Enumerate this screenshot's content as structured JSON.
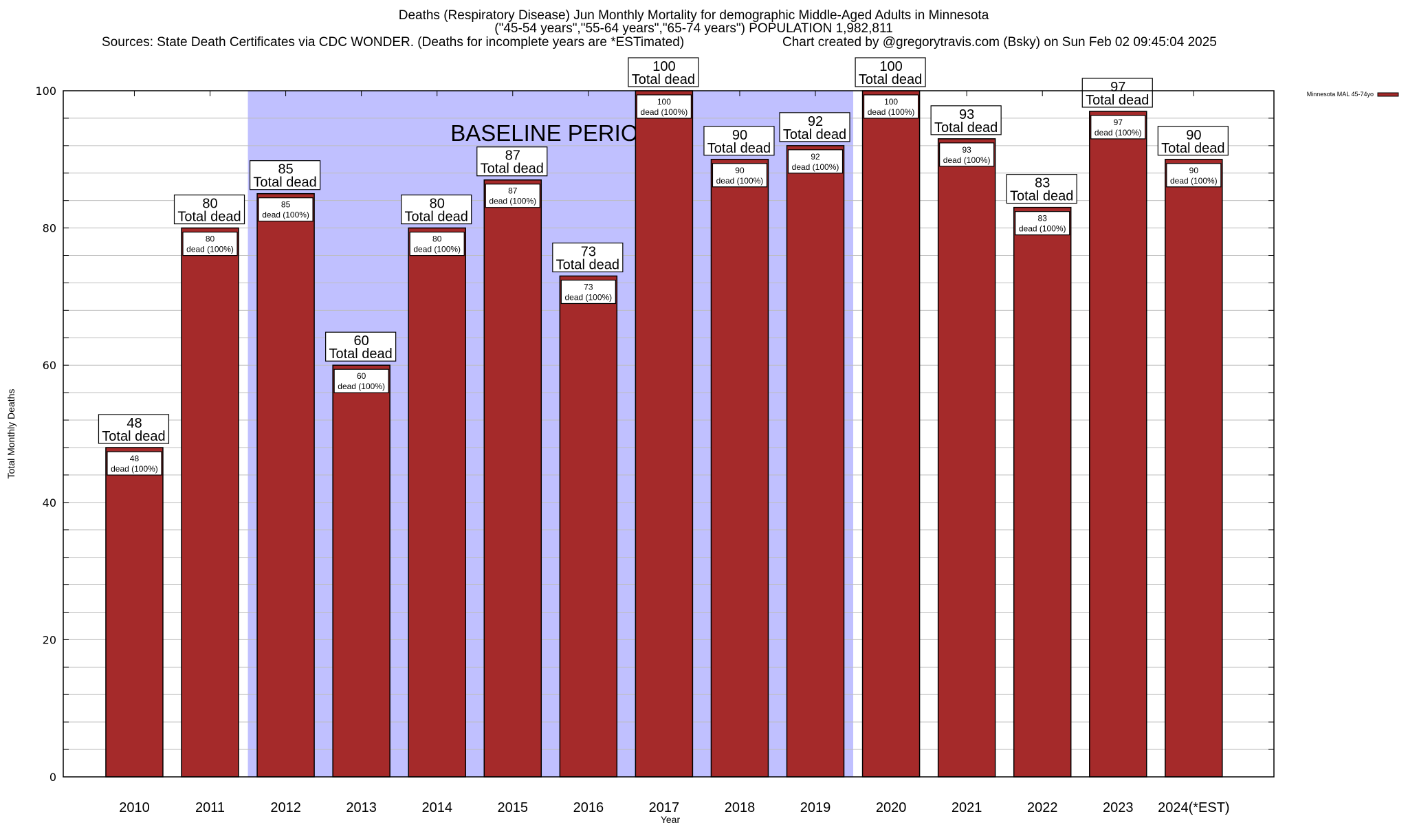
{
  "chart_data": {
    "type": "bar",
    "title": "Deaths (Respiratory Disease) Jun Monthly Mortality for demographic Middle-Aged Adults in Minnesota",
    "subtitle": "(\"45-54 years\",\"55-64 years\",\"65-74 years\") POPULATION 1,982,811",
    "sources": "Sources: State Death Certificates via CDC WONDER. (Deaths for incomplete years are *ESTimated)",
    "credit": "Chart created by @gregorytravis.com (Bsky) on Sun Feb 02 09:45:04 2025",
    "xlabel": "Year",
    "ylabel": "Total Monthly Deaths",
    "ylim": [
      0,
      100
    ],
    "yticks": [
      0,
      20,
      40,
      60,
      80,
      100
    ],
    "yminor_step": 4,
    "grid": true,
    "categories": [
      "2010",
      "2011",
      "2012",
      "2013",
      "2014",
      "2015",
      "2016",
      "2017",
      "2018",
      "2019",
      "2020",
      "2021",
      "2022",
      "2023",
      "2024(*EST)"
    ],
    "series": [
      {
        "name": "Minnesota MAL 45-74yo",
        "color": "#a52a2a",
        "values": [
          48,
          80,
          85,
          60,
          80,
          87,
          73,
          100,
          90,
          92,
          100,
          93,
          83,
          97,
          90
        ]
      }
    ],
    "top_label_suffix": "Total dead",
    "inner_label_suffix": "dead (100%)",
    "annotation": {
      "text": "BASELINE PERIOD",
      "span_categories": [
        "2012",
        "2019"
      ],
      "color": "#c0c0ff"
    },
    "legend": {
      "position": "top-right-outside",
      "entries": [
        "Minnesota MAL 45-74yo"
      ]
    }
  }
}
